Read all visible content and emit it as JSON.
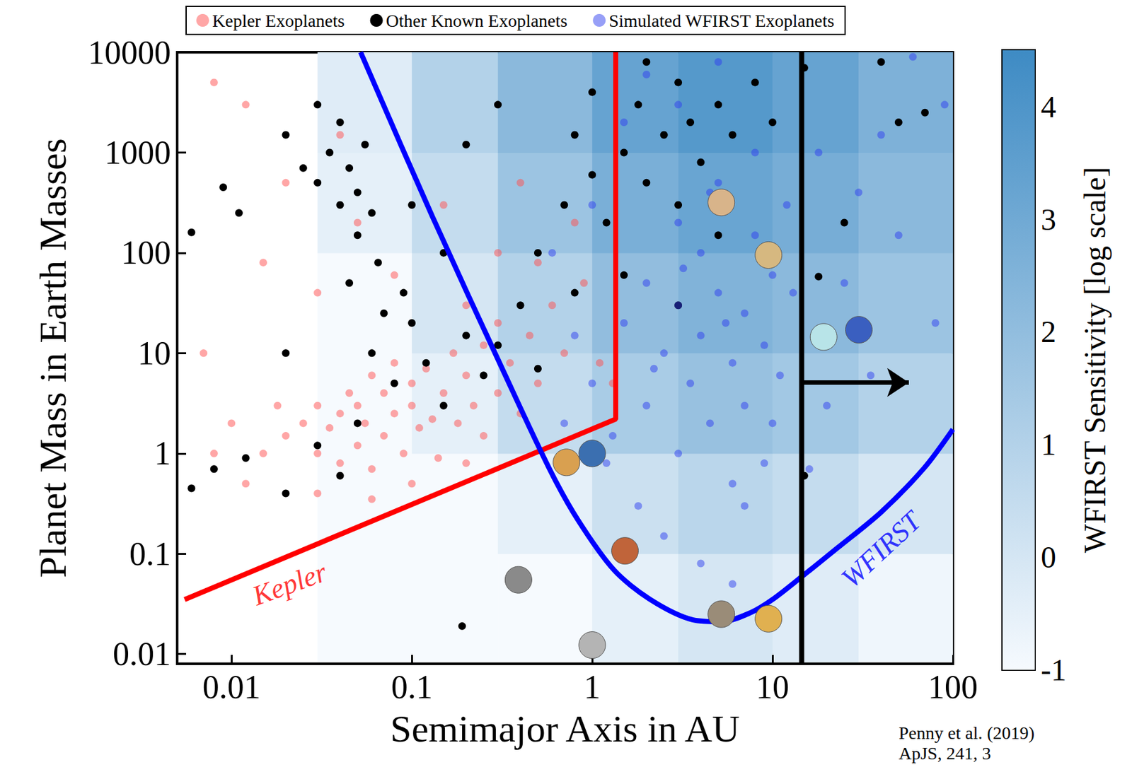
{
  "chart_data": {
    "type": "scatter",
    "x_label": "Semimajor Axis in AU",
    "y_label": "Planet Mass in Earth Masses",
    "xlim": [
      0.005,
      100
    ],
    "xticks": [
      0.01,
      0.1,
      1,
      10,
      100
    ],
    "ylim": [
      0.008,
      10000
    ],
    "yticks": [
      0.01,
      0.1,
      1,
      10,
      100,
      1000,
      10000
    ],
    "log": true,
    "grid": false,
    "legend": "top",
    "series": [
      {
        "name": "Kepler Exoplanets",
        "color": "#ff4d4d",
        "marker": "circle",
        "x": [
          0.02,
          0.025,
          0.03,
          0.03,
          0.035,
          0.04,
          0.04,
          0.045,
          0.05,
          0.05,
          0.055,
          0.06,
          0.06,
          0.07,
          0.07,
          0.08,
          0.08,
          0.09,
          0.1,
          0.1,
          0.11,
          0.12,
          0.13,
          0.14,
          0.15,
          0.17,
          0.18,
          0.2,
          0.22,
          0.25,
          0.25,
          0.3,
          0.3,
          0.35,
          0.4,
          0.45,
          0.5,
          0.6,
          0.7,
          0.9,
          1.1,
          0.015,
          0.012,
          0.018,
          0.01,
          0.008,
          0.03,
          0.06,
          0.1,
          0.2,
          0.03,
          0.05,
          0.08,
          0.15,
          0.2,
          0.3,
          0.4,
          0.5,
          0.8,
          0.007,
          0.008,
          0.012,
          0.02,
          0.015,
          0.04,
          1.3
        ],
        "values": [
          1.5,
          2,
          1,
          3,
          1.8,
          0.8,
          2.5,
          4,
          1.2,
          3,
          2,
          6,
          0.7,
          1.5,
          4,
          2.5,
          8,
          1,
          3,
          5,
          1.8,
          7,
          2.2,
          0.9,
          4,
          10,
          2,
          6,
          3,
          1.5,
          12,
          4,
          20,
          8,
          2.5,
          15,
          5,
          30,
          10,
          50,
          8,
          1,
          0.5,
          3,
          2,
          1,
          0.4,
          0.35,
          0.5,
          0.8,
          40,
          200,
          60,
          300,
          30,
          100,
          500,
          80,
          200,
          10,
          5000,
          3000,
          500,
          80,
          1500,
          5
        ]
      },
      {
        "name": "Other Known Exoplanets",
        "color": "#000000",
        "marker": "circle",
        "x": [
          0.03,
          0.035,
          0.04,
          0.04,
          0.045,
          0.05,
          0.05,
          0.055,
          0.06,
          0.065,
          0.03,
          0.025,
          0.02,
          0.045,
          0.1,
          0.15,
          0.2,
          0.3,
          0.06,
          0.08,
          0.1,
          0.12,
          0.15,
          0.2,
          0.25,
          0.3,
          0.4,
          0.5,
          0.05,
          0.07,
          0.09,
          0.5,
          0.7,
          0.8,
          1,
          1,
          1.2,
          1.5,
          1.8,
          2,
          2,
          2.5,
          3,
          3,
          3.5,
          4,
          5,
          5,
          6,
          8,
          10,
          0.8,
          1.5,
          3,
          0.006,
          0.008,
          0.006,
          0.012,
          0.009,
          0.011,
          0.02,
          0.19,
          15,
          25,
          50,
          70,
          40,
          15,
          0.03,
          0.04,
          0.02,
          18
        ],
        "values": [
          500,
          1000,
          300,
          2000,
          700,
          150,
          400,
          1200,
          250,
          80,
          3000,
          700,
          1500,
          50,
          300,
          100,
          1200,
          3000,
          10,
          5,
          20,
          8,
          3,
          15,
          6,
          12,
          30,
          7,
          2,
          25,
          40,
          100,
          300,
          1500,
          600,
          4000,
          200,
          1000,
          3000,
          500,
          8000,
          1500,
          300,
          5000,
          2000,
          800,
          3000,
          150,
          1500,
          5000,
          2000,
          40,
          60,
          30,
          160,
          0.7,
          0.45,
          0.9,
          450,
          250,
          0.4,
          0.019,
          0.6,
          200,
          2000,
          2500,
          8000,
          7000,
          1.2,
          0.6,
          10,
          58
        ]
      },
      {
        "name": "Simulated WFIRST Exoplanets",
        "color": "#3040f0",
        "marker": "circle",
        "x": [
          1,
          1.5,
          2,
          2,
          2.5,
          3,
          3,
          3,
          3.5,
          4,
          4,
          4.5,
          5,
          5,
          6,
          6,
          7,
          7,
          8,
          8,
          9,
          10,
          10,
          12,
          1.2,
          1.8,
          2.5,
          4,
          6,
          0.8,
          0.6,
          1,
          1.5,
          2,
          3,
          5,
          1.3,
          2.2,
          3.2,
          4.5,
          5.5,
          7,
          9,
          11,
          13,
          20,
          25,
          30,
          40,
          60,
          80,
          18,
          35,
          50,
          90,
          16,
          0.7
        ],
        "values": [
          5,
          20,
          3,
          50,
          10,
          1,
          30,
          200,
          5,
          15,
          100,
          2,
          40,
          500,
          8,
          0.5,
          25,
          3,
          150,
          1000,
          12,
          60,
          2,
          300,
          0.8,
          0.3,
          0.15,
          0.08,
          0.05,
          15,
          100,
          300,
          2000,
          6000,
          3000,
          8000,
          1.5,
          7,
          70,
          400,
          20,
          0.3,
          0.8,
          6,
          40,
          3,
          50,
          400,
          1500,
          9000,
          20,
          1000,
          6,
          150,
          3000,
          0.7,
          2
        ]
      },
      {
        "type": "scatter",
        "marker": "circle",
        "x": [
          0.39,
          0.72,
          1,
          1.52,
          5.2,
          9.5,
          19.2,
          30.1,
          1,
          5.2,
          9.5
        ],
        "values": [
          0.055,
          0.815,
          1,
          0.107,
          318,
          95,
          14.5,
          17.1,
          0.0123,
          0.025,
          0.0225
        ],
        "colors": [
          "#8a8a8a",
          "#d9a050",
          "#3b6fb0",
          "#c0643a",
          "#d8b48a",
          "#d6b880",
          "#b8e4e8",
          "#3a5fc0",
          "#b4b4b4",
          "#9a8c78",
          "#e0b050"
        ]
      }
    ],
    "limits": [
      {
        "label": "Kepler",
        "color": "#ff0000",
        "line_style": "solid",
        "x": [
          0.0055,
          1.35,
          1.35
        ],
        "values": [
          0.035,
          2.2,
          10000
        ],
        "label_at": [
          0.021,
          0.05
        ]
      },
      {
        "label": "WFIRST",
        "color": "#0000ff",
        "line_style": "solid",
        "x": [
          0.052,
          0.13,
          0.33,
          0.58,
          0.83,
          1.32,
          2.1,
          3.6,
          5.2,
          7.6,
          10,
          14.5,
          23,
          40,
          69,
          100
        ],
        "values": [
          10000,
          230,
          6.0,
          0.7,
          0.22,
          0.069,
          0.035,
          0.022,
          0.021,
          0.026,
          0.035,
          0.059,
          0.115,
          0.26,
          0.71,
          1.74
        ],
        "label_at": [
          40,
          0.11
        ]
      }
    ],
    "boundary": {
      "x": 14.5,
      "arrow": {
        "x": [
          14.5,
          57
        ],
        "y": 5.1
      }
    },
    "sensitivity": {
      "title": "WFIRST Sensitivity [log scale]",
      "range": [
        -1,
        4.5
      ],
      "ticks": [
        -1,
        0,
        1,
        2,
        3,
        4
      ],
      "x_edges": [
        0.03,
        0.1,
        0.3,
        1,
        3,
        10,
        30,
        100
      ],
      "y_edges": [
        0.008,
        0.1,
        1,
        10,
        100,
        1000,
        10000
      ],
      "values": [
        [
          -1,
          -1,
          -1,
          -0.5,
          0,
          -0.3,
          -0.8
        ],
        [
          -1,
          -1,
          -0.5,
          0.3,
          0.8,
          0.5,
          0
        ],
        [
          -1,
          -0.5,
          0.5,
          1.3,
          1.8,
          1.5,
          1
        ],
        [
          -1,
          0,
          1,
          2,
          2.5,
          2.2,
          1.7
        ],
        [
          -0.5,
          0.5,
          1.7,
          2.7,
          3.2,
          2.8,
          2.2
        ],
        [
          -0.3,
          1,
          2.2,
          3.3,
          3.8,
          3.3,
          2.6
        ]
      ]
    },
    "source": [
      "Penny et al. (2019)",
      "ApJS, 241, 3"
    ]
  }
}
